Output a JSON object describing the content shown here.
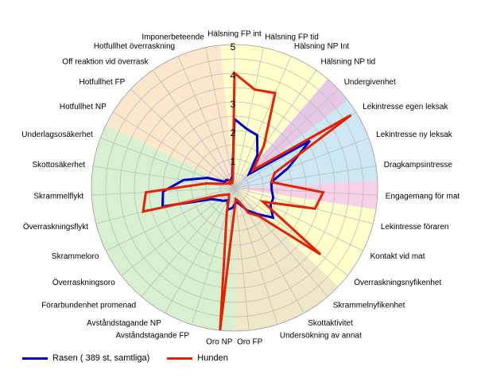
{
  "chart_data": {
    "type": "radar",
    "categories": [
      "Hälsning FP int",
      "Hälsning FP tid",
      "Hälsning NP Int",
      "Hälsning NP tid",
      "Undergivenhet",
      "Lekintresse egen leksak",
      "Lekintresse ny leksak",
      "Dragkampsintresse",
      "Engagemang för mat",
      "Lekintresse föraren",
      "Kontakt vid mat",
      "Överraskningsnyfikenhet",
      "Skrammelnyfikenhet",
      "Skottaktivitet",
      "Undersökning av annat",
      "Oro FP",
      "Oro NP",
      "Avståndstagande FP",
      "Avståndstagande NP",
      "Förarbundenhet promenad",
      "Överraskningsoro",
      "Skrammeloro",
      "Överraskningsflykt",
      "Skrammelflykt",
      "Skottosäkerhet",
      "Underlagsosäkerhet",
      "Hotfullhet NP",
      "Hotfullhet FP",
      "Off reaktion vid överrask",
      "Hotfullhet överraskning",
      "Imponerbeteende"
    ],
    "rmax": 5,
    "ticks": [
      "1",
      "2",
      "3",
      "4",
      "5"
    ],
    "series": [
      {
        "name": "Rasen ( 389 st, samtliga)",
        "color": "#0000cc",
        "values": [
          2.4,
          2.1,
          2.0,
          1.4,
          0.7,
          3.1,
          2.0,
          1.3,
          1.3,
          1.4,
          1.4,
          1.7,
          1.2,
          0.9,
          0.6,
          0.5,
          0.7,
          0.8,
          0.5,
          0.6,
          0.7,
          0.9,
          2.6,
          2.5,
          1.8,
          1.0,
          0.4,
          0.4,
          0.3,
          0.3,
          0.4
        ]
      },
      {
        "name": "Hunden",
        "color": "#e82000",
        "values": [
          4.0,
          3.5,
          3.6,
          1.8,
          0.9,
          4.8,
          1.5,
          1.3,
          3.1,
          2.9,
          1.1,
          3.8,
          1.3,
          1.0,
          0.5,
          0.4,
          5.0,
          0.9,
          0.4,
          0.3,
          0.4,
          0.6,
          3.3,
          3.1,
          1.0,
          0.4,
          0.3,
          0.2,
          0.3,
          0.2,
          0.3
        ]
      }
    ],
    "sectors": [
      {
        "from": 0,
        "to": 3,
        "color": "#ffffcc"
      },
      {
        "from": 4,
        "to": 4,
        "color": "#e6c8e6"
      },
      {
        "from": 5,
        "to": 7,
        "color": "#cce8f4"
      },
      {
        "from": 8,
        "to": 8,
        "color": "#f8d0e8"
      },
      {
        "from": 9,
        "to": 11,
        "color": "#ffffcc"
      },
      {
        "from": 12,
        "to": 15,
        "color": "#f0e6c8"
      },
      {
        "from": 16,
        "to": 25,
        "color": "#d8f0d0"
      },
      {
        "from": 26,
        "to": 30,
        "color": "#fce6cc"
      }
    ],
    "grid": true,
    "legend_position": "bottom-left"
  }
}
